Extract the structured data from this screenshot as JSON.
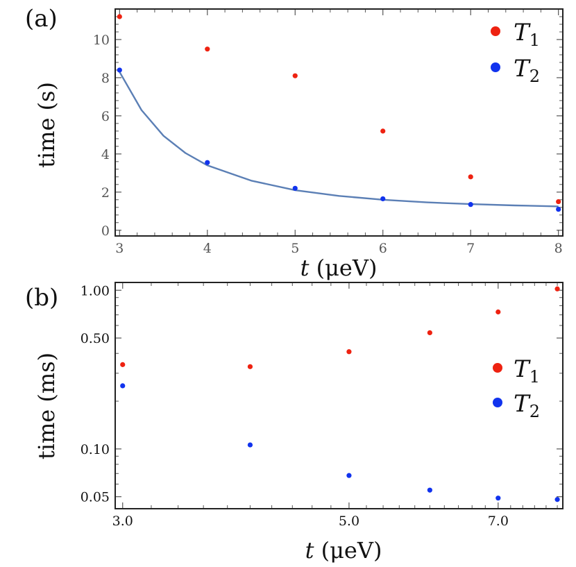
{
  "chart_data": [
    {
      "id": "a",
      "panel_label": "(a)",
      "type": "scatter",
      "yscale": "linear",
      "xlabel": {
        "var": "t",
        "unit": " (μeV)"
      },
      "ylabel": "time (s)",
      "xlim": [
        2.95,
        8.05
      ],
      "ylim": [
        -0.3,
        11.6
      ],
      "xticks": [
        3,
        4,
        5,
        6,
        7,
        8
      ],
      "yticks": [
        0,
        2,
        4,
        6,
        8,
        10
      ],
      "xtick_labels": [
        "3",
        "4",
        "5",
        "6",
        "7",
        "8"
      ],
      "ytick_labels": [
        "0",
        "2",
        "4",
        "6",
        "8",
        "10"
      ],
      "legend_position": "top-right",
      "series": [
        {
          "name": "T1",
          "sub": "1",
          "color": "#ee2211",
          "x": [
            3,
            4,
            5,
            6,
            7,
            8
          ],
          "y": [
            11.2,
            9.5,
            8.1,
            5.2,
            2.8,
            1.5
          ]
        },
        {
          "name": "T2",
          "sub": "2",
          "color": "#1133ee",
          "x": [
            3,
            4,
            5,
            6,
            7,
            8
          ],
          "y": [
            8.4,
            3.55,
            2.2,
            1.65,
            1.35,
            1.1
          ]
        }
      ],
      "fit": {
        "name": "T2 fit",
        "color": "#5b7fb5",
        "x": [
          3,
          3.25,
          3.5,
          3.75,
          4,
          4.5,
          5,
          5.5,
          6,
          6.5,
          7,
          7.5,
          8
        ],
        "y": [
          8.3,
          6.3,
          4.95,
          4.05,
          3.4,
          2.6,
          2.1,
          1.8,
          1.6,
          1.46,
          1.37,
          1.3,
          1.25
        ]
      }
    },
    {
      "id": "b",
      "panel_label": "(b)",
      "type": "scatter",
      "yscale": "log",
      "xscale": "log",
      "xlabel": {
        "var": "t",
        "unit": " (μeV)"
      },
      "ylabel": "time (ms)",
      "xlim": [
        2.95,
        8.1
      ],
      "ylim": [
        0.042,
        1.12
      ],
      "xticks": [
        3,
        5,
        7
      ],
      "yticks": [
        0.05,
        0.1,
        0.5,
        1.0
      ],
      "xtick_labels": [
        "3.0",
        "5.0",
        "7.0"
      ],
      "ytick_labels": [
        "0.05",
        "0.10",
        "0.50",
        "1.00"
      ],
      "legend_position": "center-right",
      "series": [
        {
          "name": "T1",
          "sub": "1",
          "color": "#ee2211",
          "x": [
            3,
            4,
            5,
            6,
            7,
            8
          ],
          "y": [
            0.34,
            0.33,
            0.41,
            0.54,
            0.73,
            1.02
          ]
        },
        {
          "name": "T2",
          "sub": "2",
          "color": "#1133ee",
          "x": [
            3,
            4,
            5,
            6,
            7,
            8
          ],
          "y": [
            0.25,
            0.106,
            0.068,
            0.055,
            0.049,
            0.048
          ]
        }
      ]
    }
  ]
}
